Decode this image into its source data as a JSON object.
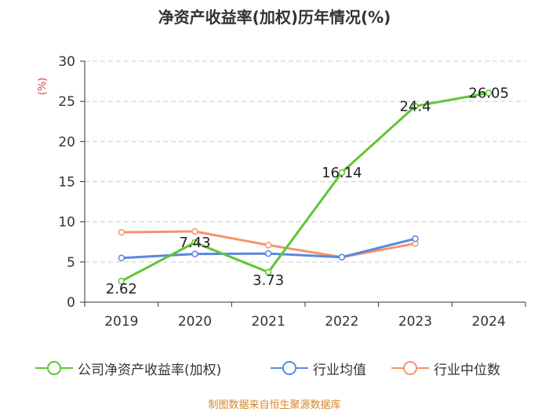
{
  "chart_data": {
    "type": "line",
    "title": "净资产收益率(加权)历年情况(%)",
    "ylabel": "(%)",
    "xlabel": "",
    "ylim": [
      0,
      30
    ],
    "yticks": [
      0,
      5,
      10,
      15,
      20,
      25,
      30
    ],
    "categories": [
      "2019",
      "2020",
      "2021",
      "2022",
      "2023",
      "2024"
    ],
    "grid": true,
    "legend_position": "bottom",
    "series": [
      {
        "name": "公司净资产收益率(加权)",
        "color": "#5fc634",
        "values": [
          2.62,
          7.43,
          3.73,
          16.14,
          24.4,
          26.05
        ],
        "labels": [
          "2.62",
          "7.43",
          "3.73",
          "16.14",
          "24.4",
          "26.05"
        ],
        "show_labels": true
      },
      {
        "name": "行业均值",
        "color": "#5a88e0",
        "values": [
          5.5,
          6.0,
          6.05,
          5.6,
          7.9,
          null
        ],
        "show_labels": false
      },
      {
        "name": "行业中位数",
        "color": "#f4946a",
        "values": [
          8.7,
          8.8,
          7.1,
          5.6,
          7.3,
          null
        ],
        "show_labels": false
      }
    ]
  },
  "source": "制图数据来自恒生聚源数据库"
}
